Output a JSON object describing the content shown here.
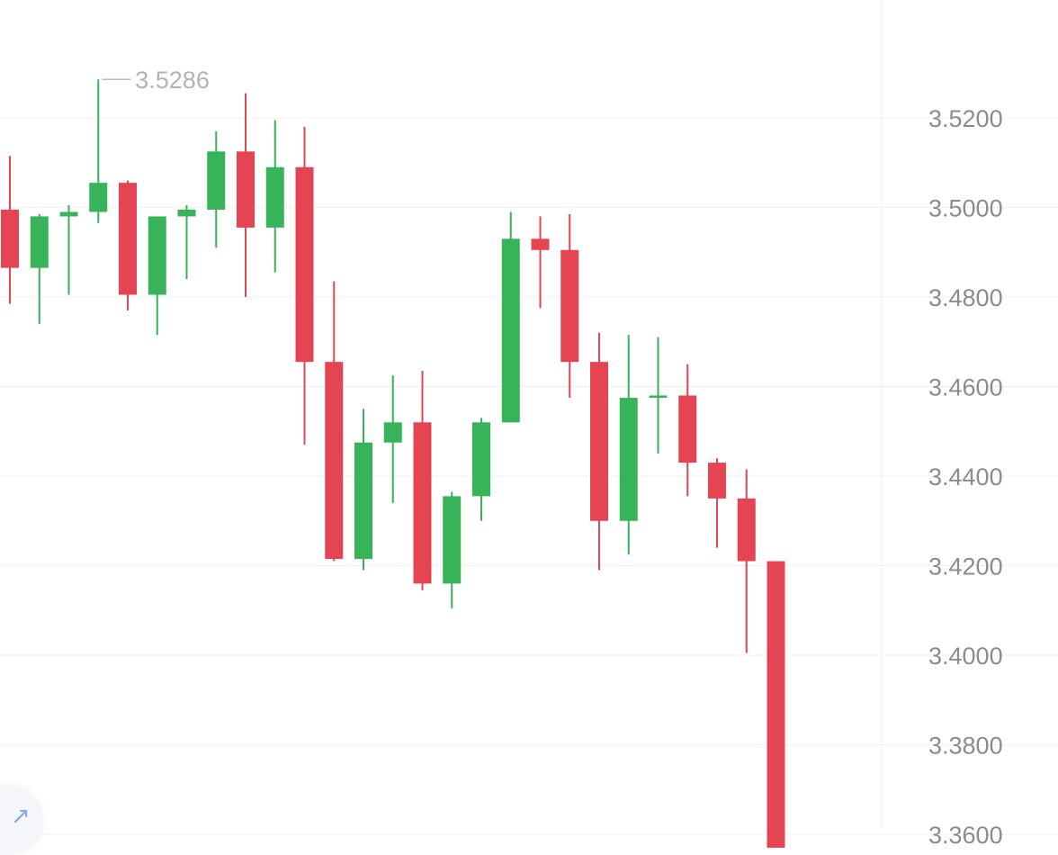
{
  "chart_data": {
    "type": "candlestick",
    "y_axis": {
      "position": "right",
      "ticks": [
        "3.5200",
        "3.5000",
        "3.4800",
        "3.4600",
        "3.4400",
        "3.4200",
        "3.4000",
        "3.3800",
        "3.3600"
      ],
      "range": [
        3.357,
        3.54
      ]
    },
    "grid": "horizontal",
    "high_marker": {
      "label": "3.5286",
      "value": 3.5286,
      "candle_index": 3
    },
    "colors": {
      "up": "#37b35a",
      "down": "#e54553",
      "grid": "#f0f0f0",
      "axis_text": "#8c8c8c",
      "marker": "#b4b4b4"
    },
    "candles": [
      {
        "o": 3.4995,
        "h": 3.5115,
        "l": 3.4785,
        "c": 3.4865
      },
      {
        "o": 3.4865,
        "h": 3.4985,
        "l": 3.474,
        "c": 3.498
      },
      {
        "o": 3.498,
        "h": 3.5005,
        "l": 3.4805,
        "c": 3.499
      },
      {
        "o": 3.499,
        "h": 3.5286,
        "l": 3.4965,
        "c": 3.5055
      },
      {
        "o": 3.5055,
        "h": 3.506,
        "l": 3.477,
        "c": 3.4805
      },
      {
        "o": 3.4805,
        "h": 3.498,
        "l": 3.4715,
        "c": 3.498
      },
      {
        "o": 3.498,
        "h": 3.5005,
        "l": 3.484,
        "c": 3.4995
      },
      {
        "o": 3.4995,
        "h": 3.517,
        "l": 3.491,
        "c": 3.5125
      },
      {
        "o": 3.5125,
        "h": 3.5255,
        "l": 3.48,
        "c": 3.4955
      },
      {
        "o": 3.4955,
        "h": 3.5195,
        "l": 3.4855,
        "c": 3.509
      },
      {
        "o": 3.509,
        "h": 3.518,
        "l": 3.447,
        "c": 3.4655
      },
      {
        "o": 3.4655,
        "h": 3.4835,
        "l": 3.421,
        "c": 3.4215
      },
      {
        "o": 3.4215,
        "h": 3.455,
        "l": 3.419,
        "c": 3.4475
      },
      {
        "o": 3.4475,
        "h": 3.4625,
        "l": 3.434,
        "c": 3.452
      },
      {
        "o": 3.452,
        "h": 3.4635,
        "l": 3.4145,
        "c": 3.416
      },
      {
        "o": 3.416,
        "h": 3.4365,
        "l": 3.4105,
        "c": 3.4355
      },
      {
        "o": 3.4355,
        "h": 3.453,
        "l": 3.43,
        "c": 3.452
      },
      {
        "o": 3.452,
        "h": 3.499,
        "l": 3.452,
        "c": 3.493
      },
      {
        "o": 3.493,
        "h": 3.498,
        "l": 3.4775,
        "c": 3.4905
      },
      {
        "o": 3.4905,
        "h": 3.4985,
        "l": 3.4575,
        "c": 3.4655
      },
      {
        "o": 3.4655,
        "h": 3.472,
        "l": 3.419,
        "c": 3.43
      },
      {
        "o": 3.43,
        "h": 3.4715,
        "l": 3.4225,
        "c": 3.4575
      },
      {
        "o": 3.4575,
        "h": 3.471,
        "l": 3.445,
        "c": 3.458
      },
      {
        "o": 3.458,
        "h": 3.465,
        "l": 3.4355,
        "c": 3.443
      },
      {
        "o": 3.443,
        "h": 3.444,
        "l": 3.424,
        "c": 3.435
      },
      {
        "o": 3.435,
        "h": 3.4415,
        "l": 3.4005,
        "c": 3.421
      },
      {
        "o": 3.421,
        "h": 3.421,
        "l": 3.357,
        "c": 3.357
      }
    ]
  },
  "fab": {
    "icon": "arrow-up-right-icon",
    "glyph": "↗"
  }
}
